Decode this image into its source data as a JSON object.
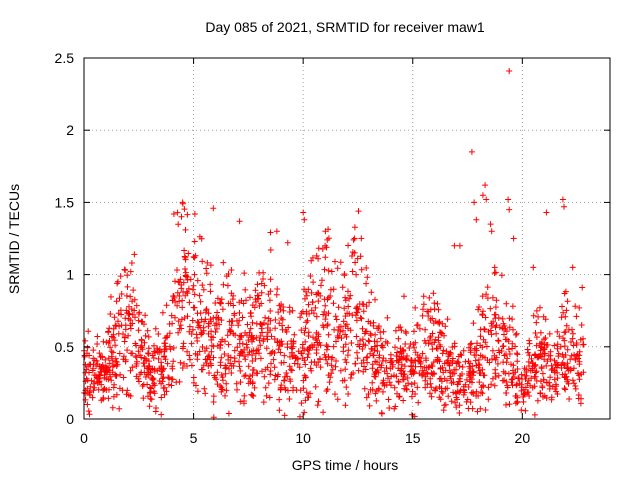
{
  "chart_data": {
    "type": "scatter",
    "title": "Day 085 of 2021, SRMTID for receiver maw1",
    "xlabel": "GPS time / hours",
    "ylabel": "SRMTID / TECUs",
    "xlim": [
      0,
      24
    ],
    "ylim": [
      0,
      2.5
    ],
    "xticks": [
      "0",
      "5",
      "10",
      "15",
      "20"
    ],
    "yticks": [
      "0",
      "0.5",
      "1",
      "1.5",
      "2",
      "2.5"
    ],
    "grid": true,
    "marker": "+",
    "series_color": "#ff0000",
    "profile": [
      [
        0.0,
        0.3
      ],
      [
        0.5,
        0.25
      ],
      [
        1.0,
        0.32
      ],
      [
        1.5,
        0.48
      ],
      [
        2.0,
        0.58
      ],
      [
        2.5,
        0.45
      ],
      [
        3.0,
        0.28
      ],
      [
        3.5,
        0.3
      ],
      [
        4.0,
        0.55
      ],
      [
        4.5,
        0.82
      ],
      [
        5.0,
        0.7
      ],
      [
        5.5,
        0.55
      ],
      [
        6.0,
        0.5
      ],
      [
        6.5,
        0.52
      ],
      [
        7.0,
        0.48
      ],
      [
        7.5,
        0.45
      ],
      [
        8.0,
        0.55
      ],
      [
        8.5,
        0.6
      ],
      [
        9.0,
        0.45
      ],
      [
        9.5,
        0.35
      ],
      [
        10.0,
        0.42
      ],
      [
        10.5,
        0.58
      ],
      [
        11.0,
        0.65
      ],
      [
        11.5,
        0.55
      ],
      [
        12.0,
        0.6
      ],
      [
        12.5,
        0.68
      ],
      [
        13.0,
        0.45
      ],
      [
        13.5,
        0.35
      ],
      [
        14.0,
        0.32
      ],
      [
        14.5,
        0.3
      ],
      [
        15.0,
        0.35
      ],
      [
        15.5,
        0.42
      ],
      [
        16.0,
        0.45
      ],
      [
        16.5,
        0.35
      ],
      [
        17.0,
        0.28
      ],
      [
        17.5,
        0.25
      ],
      [
        18.0,
        0.35
      ],
      [
        18.5,
        0.55
      ],
      [
        19.0,
        0.5
      ],
      [
        19.5,
        0.4
      ],
      [
        20.0,
        0.2
      ],
      [
        20.5,
        0.35
      ],
      [
        21.0,
        0.4
      ],
      [
        21.5,
        0.3
      ],
      [
        22.0,
        0.45
      ],
      [
        22.5,
        0.4
      ],
      [
        22.8,
        0.42
      ]
    ],
    "outliers": [
      {
        "x": 19.4,
        "y": 2.41
      },
      {
        "x": 17.7,
        "y": 1.85
      },
      {
        "x": 18.3,
        "y": 1.62
      },
      {
        "x": 18.2,
        "y": 1.55
      },
      {
        "x": 18.35,
        "y": 1.52
      },
      {
        "x": 19.35,
        "y": 1.52
      },
      {
        "x": 17.8,
        "y": 1.5
      },
      {
        "x": 21.85,
        "y": 1.52
      },
      {
        "x": 21.9,
        "y": 1.47
      },
      {
        "x": 4.5,
        "y": 1.5
      },
      {
        "x": 4.45,
        "y": 1.4
      },
      {
        "x": 4.1,
        "y": 1.42
      },
      {
        "x": 5.9,
        "y": 1.46
      },
      {
        "x": 10.0,
        "y": 1.43
      },
      {
        "x": 10.05,
        "y": 1.38
      },
      {
        "x": 7.1,
        "y": 1.37
      },
      {
        "x": 19.4,
        "y": 1.45
      },
      {
        "x": 21.1,
        "y": 1.43
      },
      {
        "x": 17.9,
        "y": 1.38
      },
      {
        "x": 18.55,
        "y": 1.35
      },
      {
        "x": 18.6,
        "y": 1.3
      },
      {
        "x": 19.6,
        "y": 1.25
      },
      {
        "x": 2.3,
        "y": 1.14
      },
      {
        "x": 1.55,
        "y": 0.95
      },
      {
        "x": 11.1,
        "y": 1.24
      },
      {
        "x": 11.0,
        "y": 1.2
      },
      {
        "x": 12.3,
        "y": 1.24
      },
      {
        "x": 12.35,
        "y": 1.15
      },
      {
        "x": 8.8,
        "y": 1.3
      },
      {
        "x": 9.3,
        "y": 1.22
      },
      {
        "x": 17.15,
        "y": 1.2
      },
      {
        "x": 16.9,
        "y": 1.2
      },
      {
        "x": 20.5,
        "y": 1.05
      },
      {
        "x": 22.3,
        "y": 1.05
      },
      {
        "x": 15.5,
        "y": 0.85
      },
      {
        "x": 14.6,
        "y": 0.85
      }
    ]
  }
}
